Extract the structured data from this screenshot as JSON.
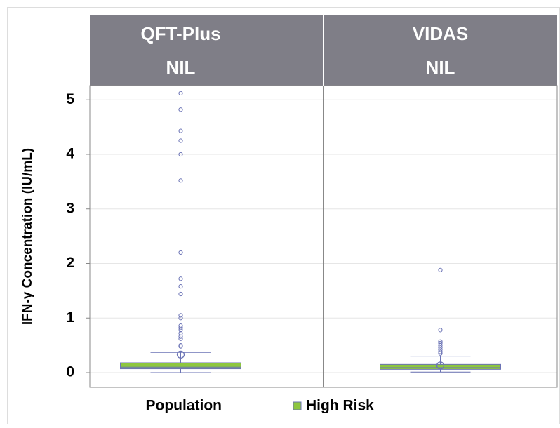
{
  "chart_data": {
    "type": "box",
    "ylabel": "IFN-γ  Concentration (IU/mL)",
    "legend_title": "Population",
    "series_name": "High Risk",
    "color": "#8dc63f",
    "line_color": "#6b73b5",
    "ylim": [
      -0.27,
      5.26
    ],
    "yticks": [
      0,
      1,
      2,
      3,
      4,
      5
    ],
    "grid": true,
    "panels": [
      {
        "title": [
          "QFT-Plus",
          "NIL"
        ],
        "whisker_low": 0,
        "q1": 0.07,
        "median": 0.1,
        "q3": 0.18,
        "whisker_high": 0.37,
        "mean": 0.33,
        "outliers": [
          5.12,
          4.82,
          4.43,
          4.25,
          4.0,
          3.52,
          2.2,
          1.72,
          1.58,
          1.44,
          1.05,
          1.0,
          0.86,
          0.82,
          0.78,
          0.72,
          0.66,
          0.62,
          0.5,
          0.48
        ]
      },
      {
        "title": [
          "VIDAS",
          "NIL"
        ],
        "whisker_low": 0.01,
        "q1": 0.06,
        "median": 0.09,
        "q3": 0.15,
        "whisker_high": 0.3,
        "mean": 0.13,
        "outliers": [
          1.88,
          0.78,
          0.57,
          0.54,
          0.5,
          0.46,
          0.42,
          0.38,
          0.35
        ]
      }
    ]
  }
}
